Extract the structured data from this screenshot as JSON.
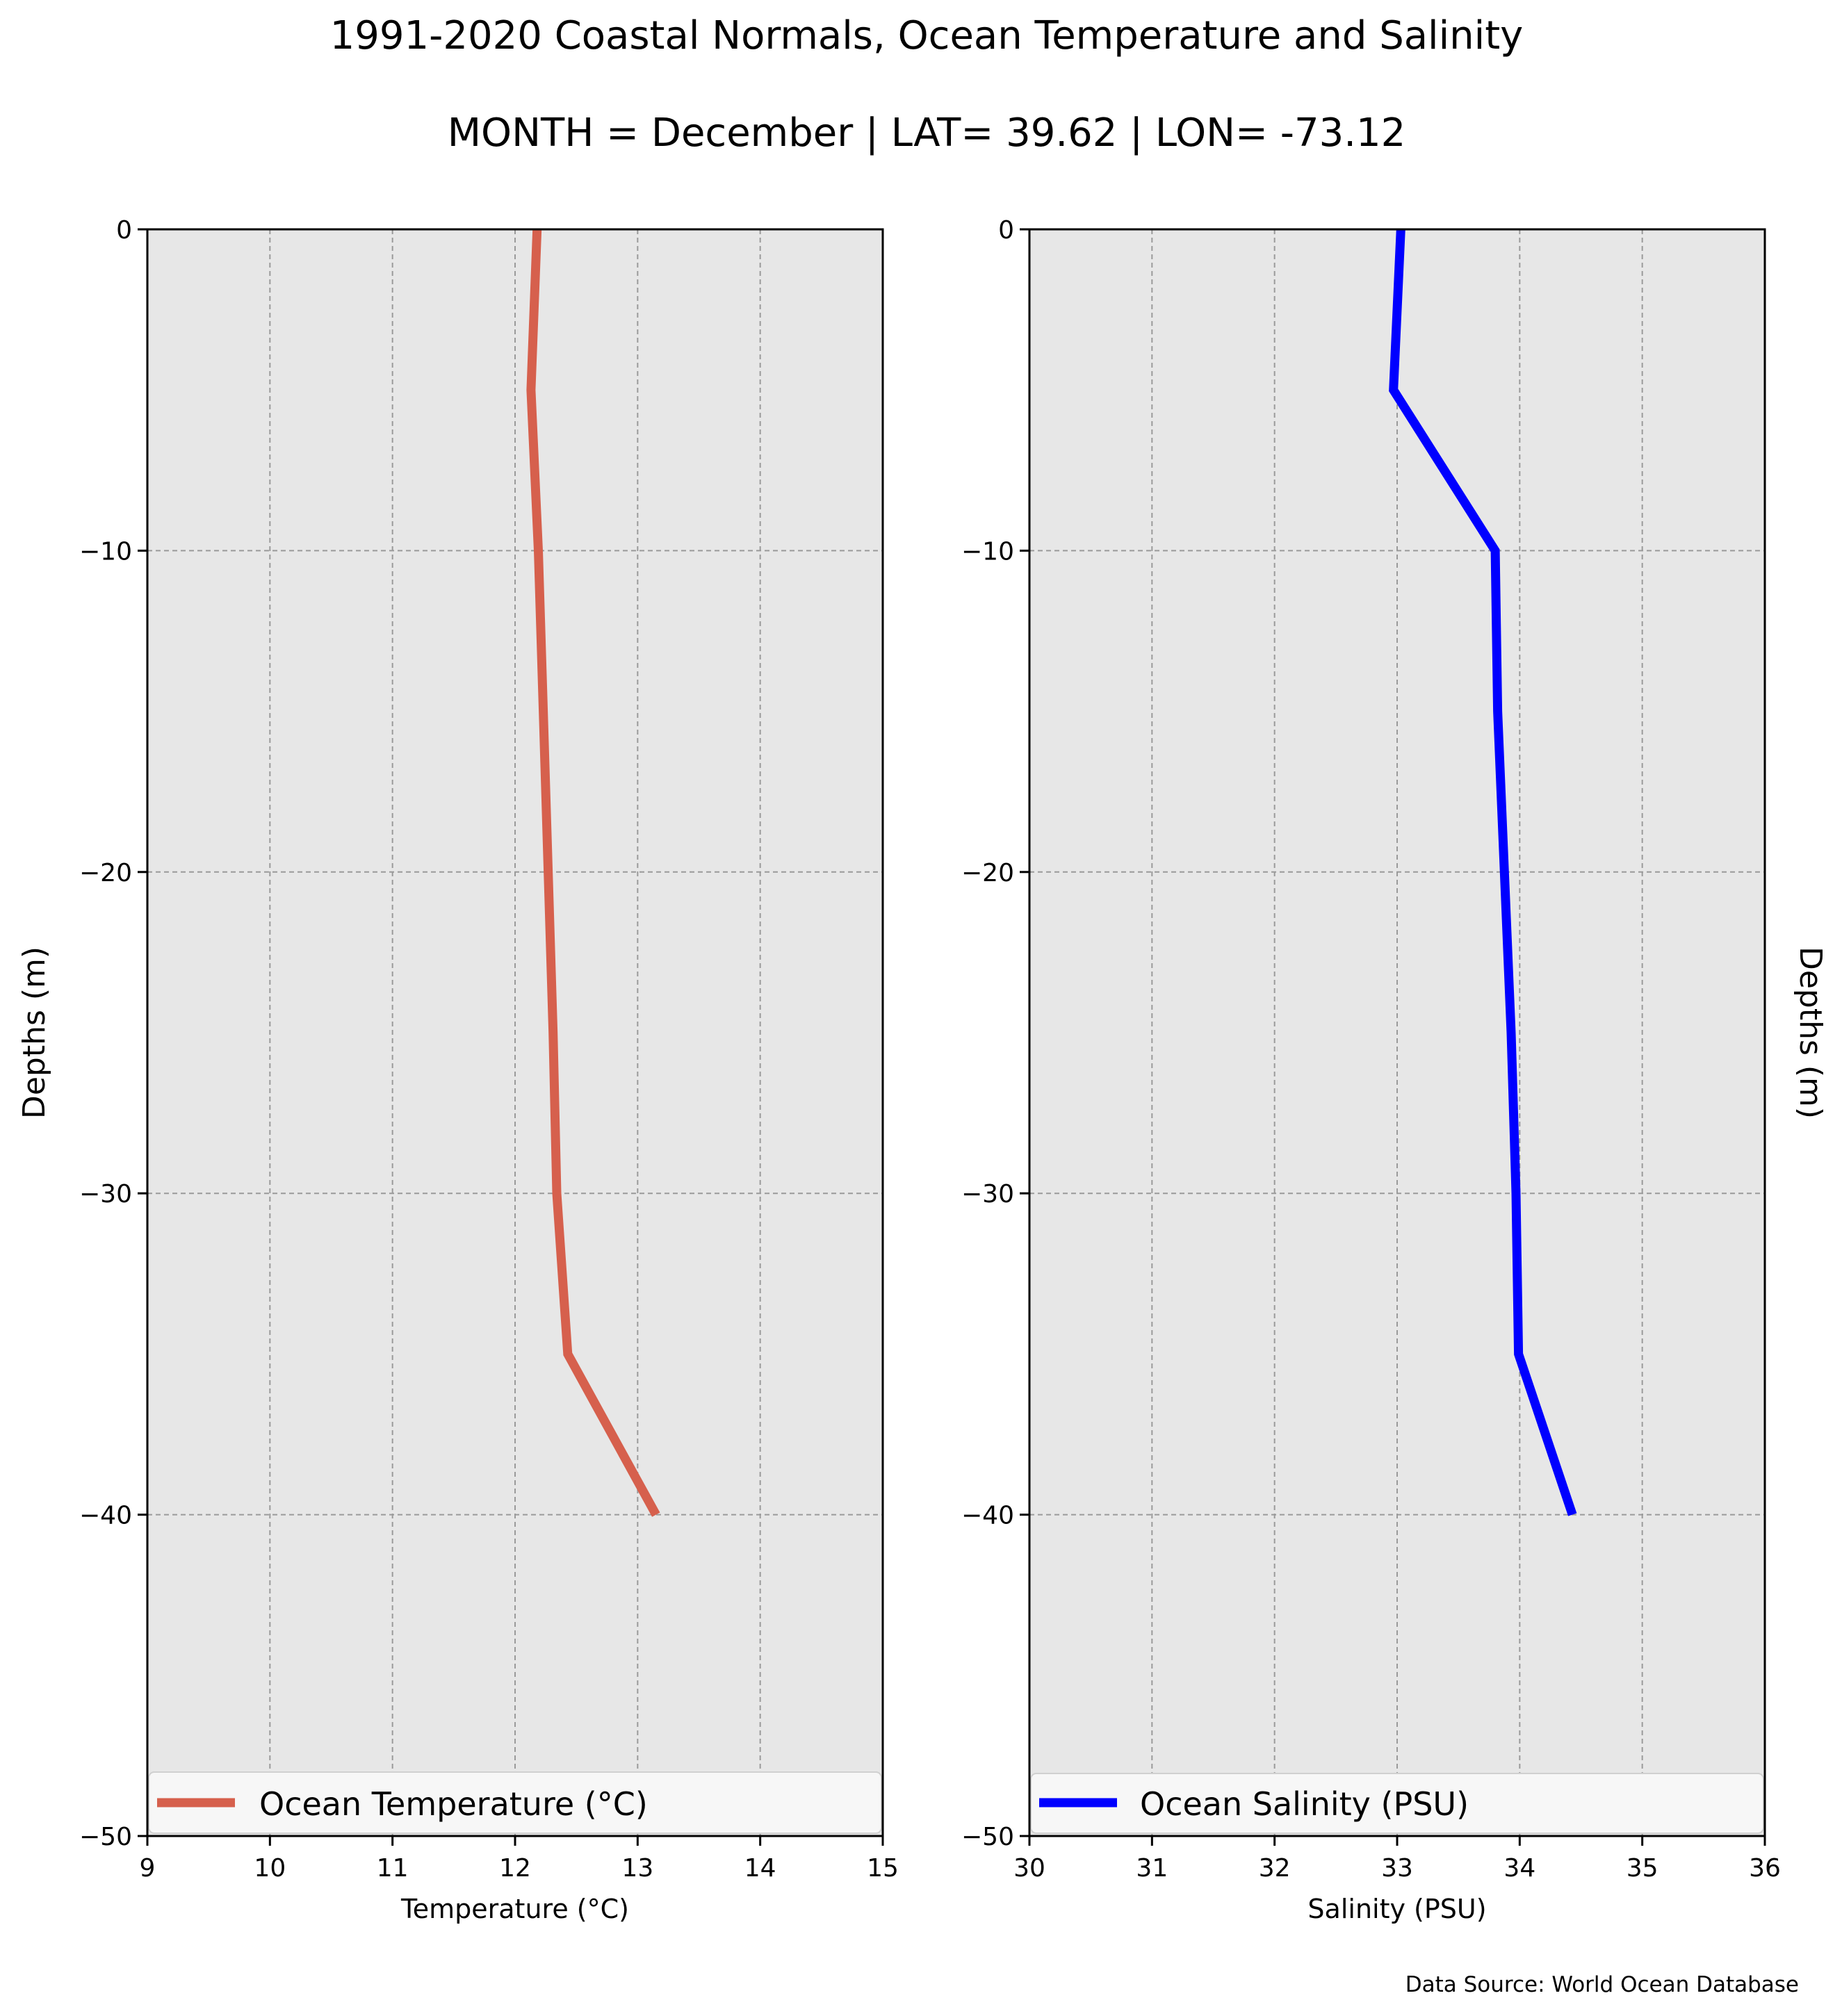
{
  "figure": {
    "title": "1991-2020 Coastal Normals, Ocean Temperature and Salinity",
    "subtitle": "MONTH = December | LAT= 39.62 | LON= -73.12",
    "source_note": "Data Source: World Ocean Database"
  },
  "colors": {
    "plot_background": "#e7e7e7",
    "grid": "#9a9a9a",
    "temperature_line": "#d6604d",
    "salinity_line": "#0000ff"
  },
  "chart_data": [
    {
      "type": "line",
      "xlabel": "Temperature ($^\\circ$C)",
      "ylabel": "Depths (m)",
      "xlim": [
        9,
        15
      ],
      "ylim": [
        -50,
        0
      ],
      "xticks": [
        "9",
        "10",
        "11",
        "12",
        "13",
        "14",
        "15"
      ],
      "yticks": [
        "0",
        "−10",
        "−20",
        "−30",
        "−40",
        "−50"
      ],
      "xtick_values": [
        9,
        10,
        11,
        12,
        13,
        14,
        15
      ],
      "ytick_values": [
        0,
        -10,
        -20,
        -30,
        -40,
        -50
      ],
      "grid": true,
      "legend": "lower center",
      "series": [
        {
          "name": "Ocean Temperature ($^\\circ$C)",
          "color": "#d6604d",
          "x": [
            12.18,
            12.13,
            12.19,
            12.23,
            12.31,
            12.34,
            12.43,
            13.15
          ],
          "y": [
            0,
            -5,
            -10,
            -15,
            -25,
            -30,
            -35,
            -40
          ]
        }
      ]
    },
    {
      "type": "line",
      "xlabel": "Salinity (PSU)",
      "ylabel": "Depths (m)",
      "xlim": [
        30,
        36
      ],
      "ylim": [
        -50,
        0
      ],
      "xticks": [
        "30",
        "31",
        "32",
        "33",
        "34",
        "35",
        "36"
      ],
      "yticks": [
        "0",
        "−10",
        "−20",
        "−30",
        "−40",
        "−50"
      ],
      "xtick_values": [
        30,
        31,
        32,
        33,
        34,
        35,
        36
      ],
      "ytick_values": [
        0,
        -10,
        -20,
        -30,
        -40,
        -50
      ],
      "grid": true,
      "legend": "lower center",
      "series": [
        {
          "name": "Ocean Salinity (PSU)",
          "color": "#0000ff",
          "x": [
            33.03,
            32.97,
            33.8,
            33.82,
            33.93,
            33.97,
            33.99,
            34.43
          ],
          "y": [
            0,
            -5,
            -10,
            -15,
            -25,
            -30,
            -35,
            -40
          ]
        }
      ]
    }
  ]
}
